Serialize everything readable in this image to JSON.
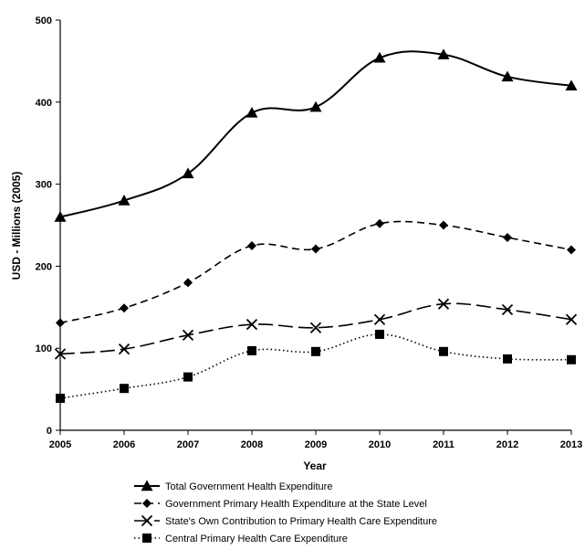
{
  "chart_data": {
    "type": "line",
    "title": "",
    "xlabel": "Year",
    "ylabel": "USD - Millions (2005)",
    "x": [
      "2005",
      "2006",
      "2007",
      "2008",
      "2009",
      "2010",
      "2011",
      "2012",
      "2013"
    ],
    "ylim": [
      0,
      500
    ],
    "yticks": [
      "0",
      "100",
      "200",
      "300",
      "400",
      "500"
    ],
    "grid": false,
    "legend_position": "bottom",
    "series": [
      {
        "name": "Total Government Health Expenditure",
        "values": [
          260,
          280,
          313,
          387,
          394,
          454,
          458,
          431,
          420
        ],
        "marker": "triangle",
        "line": "solid",
        "color": "#000000"
      },
      {
        "name": "Government Primary Health Expenditure at the State Level",
        "values": [
          131,
          149,
          180,
          225,
          221,
          252,
          250,
          235,
          220
        ],
        "marker": "diamond",
        "line": "dashed",
        "color": "#000000"
      },
      {
        "name": "State's Own Contribution to Primary Health Care Expenditure",
        "values": [
          93,
          99,
          116,
          129,
          125,
          135,
          154,
          147,
          135
        ],
        "marker": "x",
        "line": "long-dash",
        "color": "#000000"
      },
      {
        "name": "Central Primary Health Care Expenditure",
        "values": [
          39,
          51,
          65,
          97,
          96,
          117,
          96,
          87,
          86
        ],
        "marker": "square",
        "line": "dotted",
        "color": "#000000"
      }
    ]
  }
}
